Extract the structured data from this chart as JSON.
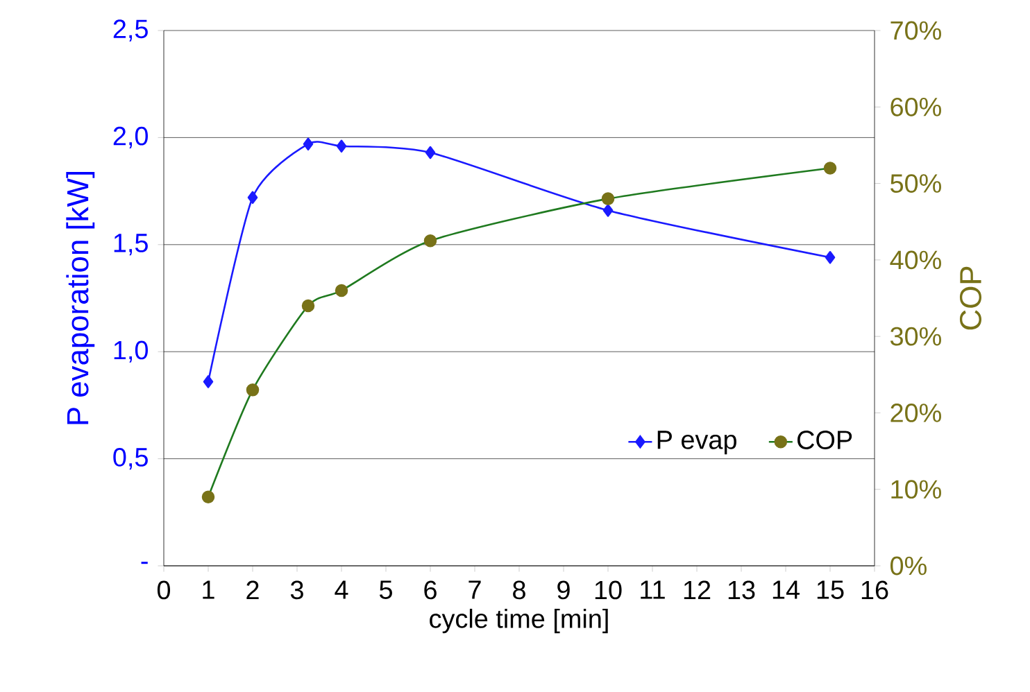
{
  "chart_data": {
    "type": "line",
    "xlabel": "cycle time [min]",
    "ylabel": "P evaporation [kW]",
    "y2label": "COP",
    "xlim": [
      0,
      16
    ],
    "xticks": [
      0,
      1,
      2,
      3,
      4,
      5,
      6,
      7,
      8,
      9,
      10,
      11,
      12,
      13,
      14,
      15,
      16
    ],
    "ylim": [
      0,
      2.5
    ],
    "yticks": [
      {
        "value": 0,
        "label": "-"
      },
      {
        "value": 0.5,
        "label": "0,5"
      },
      {
        "value": 1.0,
        "label": "1,0"
      },
      {
        "value": 1.5,
        "label": "1,5"
      },
      {
        "value": 2.0,
        "label": "2,0"
      },
      {
        "value": 2.5,
        "label": "2,5"
      }
    ],
    "y2lim": [
      0,
      70
    ],
    "y2ticks": [
      {
        "value": 0,
        "label": "0%"
      },
      {
        "value": 10,
        "label": "10%"
      },
      {
        "value": 20,
        "label": "20%"
      },
      {
        "value": 30,
        "label": "30%"
      },
      {
        "value": 40,
        "label": "40%"
      },
      {
        "value": 50,
        "label": "50%"
      },
      {
        "value": 60,
        "label": "60%"
      },
      {
        "value": 70,
        "label": "70%"
      }
    ],
    "grid": "y",
    "legend": "bottom right",
    "series": [
      {
        "name": "P evap",
        "color": "#1a1aff",
        "marker": "diamond",
        "x": [
          1,
          2,
          3.25,
          4,
          6,
          10,
          15
        ],
        "values": [
          0.86,
          1.72,
          1.97,
          1.96,
          1.93,
          1.66,
          1.44
        ]
      },
      {
        "name": "COP",
        "color": "#1f7a1f",
        "marker": "circle",
        "axis": "y2",
        "x": [
          1,
          2,
          3.25,
          4,
          6,
          10,
          15
        ],
        "values": [
          9,
          23,
          34,
          36,
          42.5,
          48,
          52
        ]
      }
    ]
  }
}
